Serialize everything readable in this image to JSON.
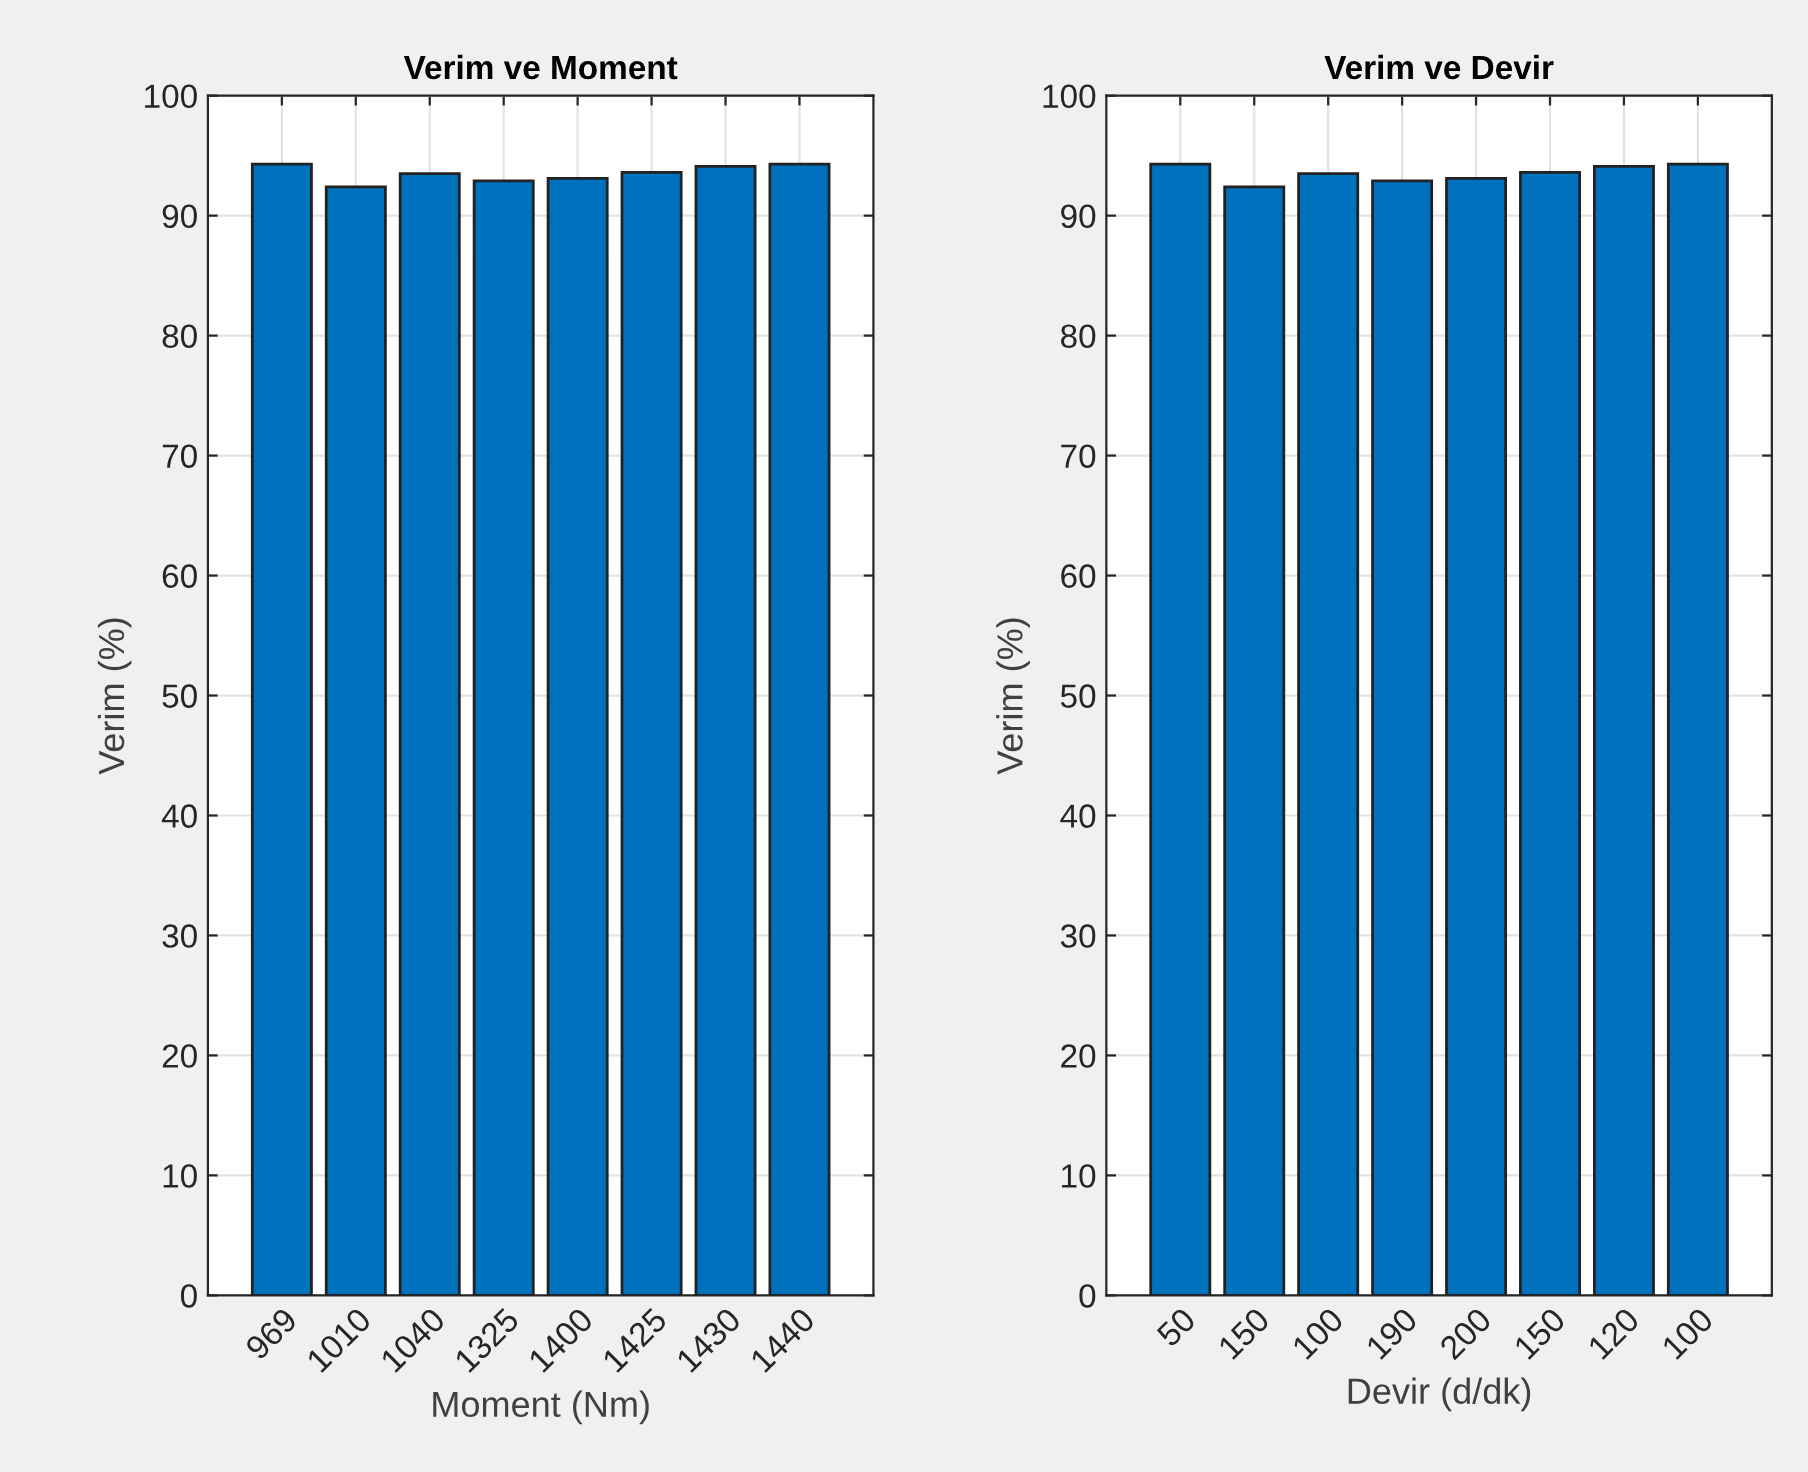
{
  "chart_data": [
    {
      "type": "bar",
      "title": "Verim ve Moment",
      "xlabel": "Moment (Nm)",
      "ylabel": "Verim (%)",
      "categories": [
        "969",
        "1010",
        "1040",
        "1325",
        "1400",
        "1425",
        "1430",
        "1440"
      ],
      "values": [
        94.3,
        92.4,
        93.5,
        92.9,
        93.1,
        93.6,
        94.1,
        94.3
      ],
      "color": "#0072bd",
      "ylim": [
        0,
        100
      ],
      "yticks": [
        0,
        10,
        20,
        30,
        40,
        50,
        60,
        70,
        80,
        90,
        100
      ],
      "grid": true
    },
    {
      "type": "bar",
      "title": "Verim ve Devir",
      "xlabel": "Devir (d/dk)",
      "ylabel": "Verim (%)",
      "categories": [
        "50",
        "150",
        "100",
        "190",
        "200",
        "150",
        "120",
        "100"
      ],
      "values": [
        94.3,
        92.4,
        93.5,
        92.9,
        93.1,
        93.6,
        94.1,
        94.3
      ],
      "color": "#0072bd",
      "ylim": [
        0,
        100
      ],
      "yticks": [
        0,
        10,
        20,
        30,
        40,
        50,
        60,
        70,
        80,
        90,
        100
      ],
      "grid": true
    }
  ]
}
